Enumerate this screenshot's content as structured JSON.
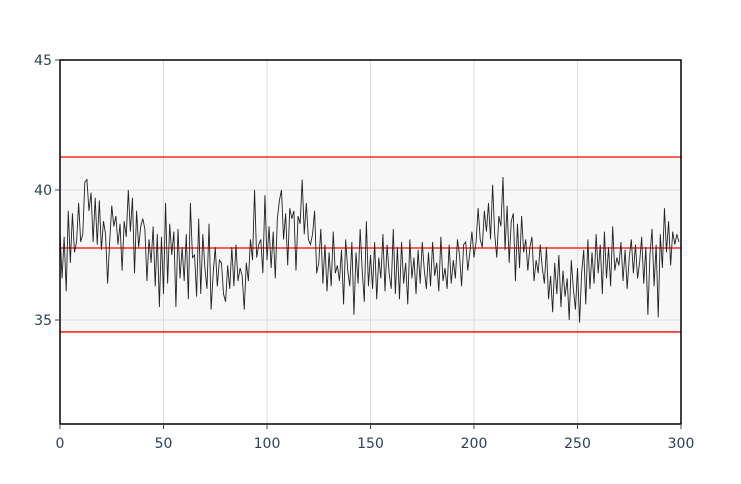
{
  "chart_data": {
    "type": "line",
    "title": "",
    "xlabel": "",
    "ylabel": "",
    "xlim": [
      0,
      300
    ],
    "ylim": [
      31,
      45
    ],
    "x_ticks": [
      0,
      50,
      100,
      150,
      200,
      250,
      300
    ],
    "y_ticks": [
      35,
      40,
      45
    ],
    "grid": true,
    "control_limits": {
      "upper": 41.27,
      "center": 37.77,
      "lower": 34.54
    },
    "colors": {
      "series": "#222222",
      "limits": "#ff0000",
      "band": "#f7f7f7",
      "grid": "#dddddd",
      "ticks": "#2a3f5f"
    },
    "x_start": 0,
    "values": [
      38.4,
      36.6,
      38.2,
      36.1,
      39.2,
      37.2,
      39.1,
      37.6,
      38.0,
      39.5,
      38.0,
      38.3,
      40.3,
      40.4,
      39.2,
      39.9,
      38.0,
      39.7,
      37.9,
      39.6,
      37.7,
      38.8,
      38.3,
      36.4,
      38.0,
      39.4,
      38.6,
      39.0,
      37.9,
      38.7,
      36.9,
      38.8,
      38.2,
      40.0,
      38.4,
      39.7,
      36.8,
      39.2,
      37.8,
      38.6,
      38.9,
      38.5,
      36.5,
      38.1,
      37.2,
      38.6,
      36.3,
      38.3,
      35.5,
      38.2,
      36.0,
      39.5,
      36.4,
      38.7,
      37.5,
      38.4,
      35.5,
      38.5,
      36.6,
      37.8,
      36.5,
      38.3,
      35.8,
      39.5,
      37.4,
      37.5,
      35.9,
      38.9,
      36.0,
      38.3,
      37.0,
      36.2,
      38.7,
      35.4,
      36.8,
      37.8,
      36.3,
      37.3,
      37.2,
      36.0,
      35.7,
      37.1,
      36.2,
      37.8,
      36.3,
      37.9,
      36.5,
      37.0,
      36.7,
      35.4,
      37.2,
      36.5,
      38.1,
      37.3,
      40.0,
      37.4,
      37.9,
      38.1,
      36.8,
      39.8,
      37.3,
      38.6,
      37.0,
      38.4,
      36.6,
      38.9,
      39.6,
      40.0,
      38.1,
      39.1,
      37.1,
      39.3,
      38.9,
      39.2,
      36.9,
      39.0,
      38.7,
      40.4,
      38.3,
      39.5,
      38.1,
      37.9,
      38.3,
      39.2,
      36.8,
      37.2,
      38.5,
      36.4,
      37.9,
      36.1,
      37.6,
      36.3,
      38.4,
      36.8,
      37.1,
      36.5,
      37.7,
      35.6,
      38.1,
      36.9,
      36.3,
      38.0,
      35.2,
      37.6,
      36.4,
      38.5,
      36.9,
      35.7,
      38.8,
      36.3,
      37.5,
      36.2,
      38.0,
      35.8,
      37.4,
      36.6,
      38.3,
      36.1,
      37.9,
      36.8,
      36.2,
      38.5,
      36.0,
      37.8,
      35.8,
      38.0,
      36.4,
      37.2,
      35.6,
      38.1,
      36.6,
      37.4,
      36.0,
      37.7,
      36.4,
      38.0,
      36.9,
      36.2,
      37.6,
      36.3,
      38.0,
      36.7,
      37.2,
      36.1,
      38.2,
      36.5,
      37.0,
      36.2,
      37.9,
      36.4,
      37.3,
      36.6,
      38.1,
      37.5,
      36.3,
      37.9,
      38.0,
      36.9,
      37.6,
      38.4,
      37.4,
      38.0,
      39.3,
      38.1,
      37.8,
      39.2,
      38.4,
      39.5,
      38.1,
      40.2,
      38.3,
      37.4,
      39.0,
      38.6,
      40.5,
      37.7,
      39.4,
      37.2,
      38.8,
      39.1,
      36.5,
      38.7,
      37.0,
      39.0,
      37.6,
      38.1,
      36.9,
      37.8,
      38.2,
      36.5,
      37.3,
      36.8,
      37.9,
      37.0,
      36.4,
      37.8,
      35.8,
      36.7,
      35.3,
      37.2,
      36.0,
      37.5,
      35.5,
      36.9,
      35.9,
      36.6,
      35.0,
      37.3,
      36.2,
      35.4,
      37.0,
      34.9,
      36.8,
      37.7,
      35.6,
      38.1,
      36.2,
      37.6,
      36.4,
      38.3,
      36.8,
      37.9,
      36.0,
      38.4,
      36.6,
      37.8,
      36.3,
      38.6,
      36.9,
      37.4,
      37.1,
      38.0,
      36.5,
      37.7,
      36.2,
      37.4,
      38.1,
      36.8,
      37.9,
      36.6,
      37.2,
      38.2,
      36.4,
      37.8,
      35.2,
      37.5,
      38.5,
      36.3,
      37.9,
      35.1,
      38.3,
      37.0,
      39.3,
      37.6,
      38.8,
      37.1,
      38.4,
      37.9,
      38.3,
      38.0
    ]
  }
}
